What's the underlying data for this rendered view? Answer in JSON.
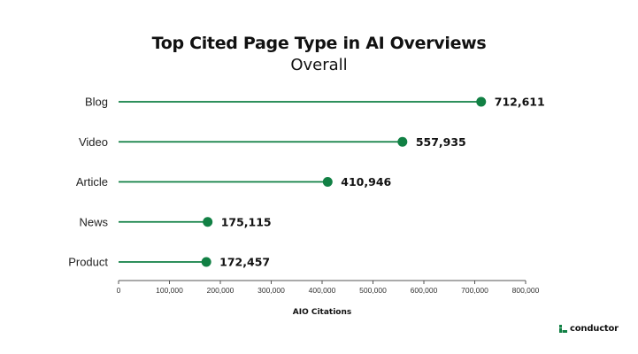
{
  "chart_data": {
    "type": "lollipop",
    "title": "Top Cited Page Type in AI Overviews",
    "subtitle": "Overall",
    "categories": [
      "Blog",
      "Video",
      "Article",
      "News",
      "Product"
    ],
    "values": [
      712611,
      557935,
      410946,
      175115,
      172457
    ],
    "value_labels": [
      "712,611",
      "557,935",
      "410,946",
      "175,115",
      "172,457"
    ],
    "xlabel": "AIO Citations",
    "xlim": [
      0,
      800000
    ],
    "xticks": [
      0,
      100000,
      200000,
      300000,
      400000,
      500000,
      600000,
      700000,
      800000
    ],
    "xtick_labels": [
      "0",
      "100,000",
      "200,000",
      "300,000",
      "400,000",
      "500,000",
      "600,000",
      "700,000",
      "800,000"
    ],
    "color": "#118044",
    "grid": false
  },
  "brand": {
    "name": "conductor",
    "color": "#118044"
  }
}
